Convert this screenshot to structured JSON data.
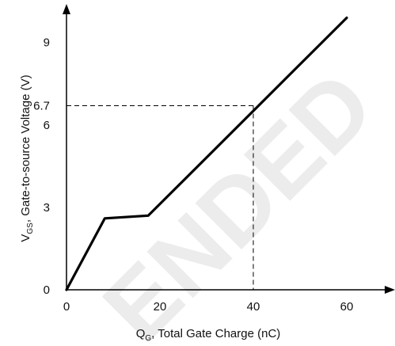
{
  "chart_data": {
    "type": "line",
    "xlabel": {
      "main": "Q",
      "sub": "G",
      "rest": ", Total Gate Charge (nC)"
    },
    "ylabel": {
      "main": "V",
      "sub": "GS",
      "rest": ", Gate-to-source Voltage (V)"
    },
    "xlim": [
      0,
      62
    ],
    "ylim": [
      0,
      10.2
    ],
    "x_ticks": [
      0,
      20,
      40,
      60
    ],
    "x_tick_labels": [
      "0",
      "20",
      "40",
      "60"
    ],
    "y_ticks": [
      0,
      3,
      6,
      6.7,
      9
    ],
    "y_tick_labels": [
      "0",
      "3",
      "6",
      "6.7",
      "9"
    ],
    "grid": false,
    "watermark": "ENDED",
    "series": [
      {
        "x": [
          0,
          8.2,
          17.5,
          60
        ],
        "y": [
          0,
          2.6,
          2.7,
          9.9
        ],
        "color": "#000000"
      }
    ],
    "reference": {
      "x": 40,
      "y": 6.7
    }
  },
  "colors": {
    "line": "#000000",
    "axis": "#000000",
    "text": "#111111",
    "watermark": "#ececec"
  }
}
